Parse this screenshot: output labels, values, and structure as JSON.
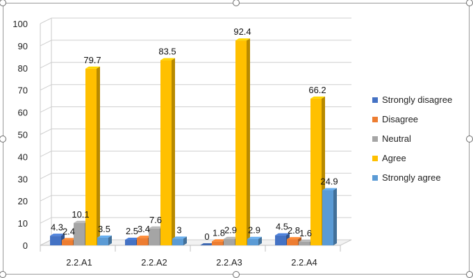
{
  "chart_data": {
    "type": "bar",
    "title": "",
    "xlabel": "",
    "ylabel": "",
    "ylim": [
      0,
      100
    ],
    "yticks": [
      "0",
      "10",
      "20",
      "30",
      "40",
      "50",
      "60",
      "70",
      "80",
      "90",
      "100"
    ],
    "categories": [
      "2.2.A1",
      "2.2.A2",
      "2.2.A3",
      "2.2.A4"
    ],
    "legend_position": "right",
    "grid": true,
    "series": [
      {
        "name": "Strongly disagree",
        "color": "#4472C4",
        "values": [
          4.3,
          2.5,
          0,
          4.5
        ],
        "labels": [
          "4.3",
          "2.5",
          "0",
          "4.5"
        ]
      },
      {
        "name": "Disagree",
        "color": "#ED7D31",
        "values": [
          2.4,
          3.4,
          1.8,
          2.8
        ],
        "labels": [
          "2.4",
          "3.4",
          "1.8",
          "2.8"
        ]
      },
      {
        "name": "Neutral",
        "color": "#A5A5A5",
        "values": [
          10.1,
          7.6,
          2.9,
          1.6
        ],
        "labels": [
          "10.1",
          "7.6",
          "2.9",
          "1.6"
        ]
      },
      {
        "name": "Agree",
        "color": "#FFC000",
        "values": [
          79.7,
          83.5,
          92.4,
          66.2
        ],
        "labels": [
          "79.7",
          "83.5",
          "92.4",
          "66.2"
        ]
      },
      {
        "name": "Strongly agree",
        "color": "#5B9BD5",
        "values": [
          3.5,
          3,
          2.9,
          24.9
        ],
        "labels": [
          "3.5",
          "3",
          "2.9",
          "24.9"
        ]
      }
    ]
  }
}
